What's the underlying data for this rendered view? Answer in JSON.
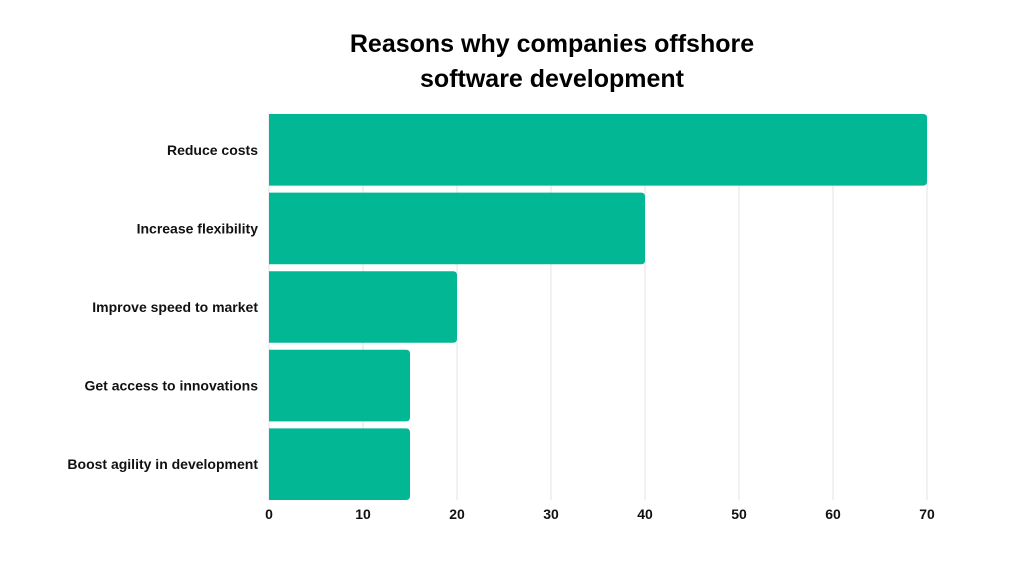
{
  "chart_data": {
    "type": "bar",
    "orientation": "horizontal",
    "title_lines": [
      "Reasons why companies offshore",
      "software development"
    ],
    "categories": [
      "Reduce costs",
      "Increase flexibility",
      "Improve speed to market",
      "Get access to innovations",
      "Boost agility in development"
    ],
    "values": [
      70,
      40,
      20,
      15,
      15
    ],
    "xlim": [
      0,
      70
    ],
    "xticks": [
      0,
      10,
      20,
      30,
      40,
      50,
      60,
      70
    ],
    "xlabel": "",
    "ylabel": "",
    "grid": true,
    "legend": "none",
    "bar_color": "#02B794",
    "grid_color": "#E3E3E3"
  }
}
